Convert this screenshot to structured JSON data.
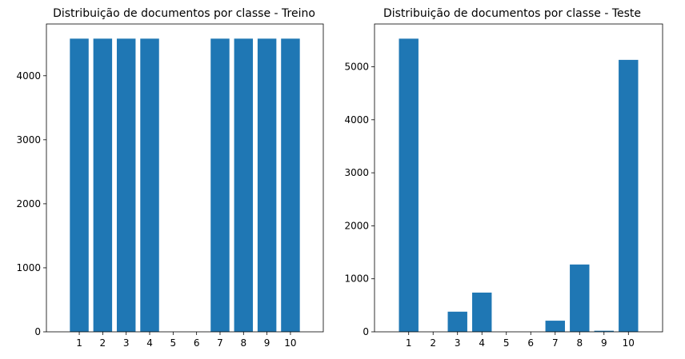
{
  "chart_data": [
    {
      "type": "bar",
      "title": "Distribuição de documentos por classe - Treino",
      "xlabel": "",
      "ylabel": "",
      "categories": [
        "1",
        "2",
        "3",
        "4",
        "5",
        "6",
        "7",
        "8",
        "9",
        "10"
      ],
      "values": [
        4580,
        4580,
        4580,
        4580,
        0,
        0,
        4580,
        4580,
        4580,
        4580
      ],
      "ylim": [
        0,
        4809
      ],
      "yticks": [
        0,
        1000,
        2000,
        3000,
        4000
      ],
      "color": "#1f77b4",
      "grid": false,
      "legend": false
    },
    {
      "type": "bar",
      "title": "Distribuição de documentos por classe - Teste",
      "xlabel": "",
      "ylabel": "",
      "categories": [
        "1",
        "2",
        "3",
        "4",
        "5",
        "6",
        "7",
        "8",
        "9",
        "10"
      ],
      "values": [
        5530,
        0,
        380,
        740,
        0,
        0,
        210,
        1270,
        20,
        5130
      ],
      "ylim": [
        0,
        5807
      ],
      "yticks": [
        0,
        1000,
        2000,
        3000,
        4000,
        5000
      ],
      "color": "#1f77b4",
      "grid": false,
      "legend": false
    }
  ]
}
